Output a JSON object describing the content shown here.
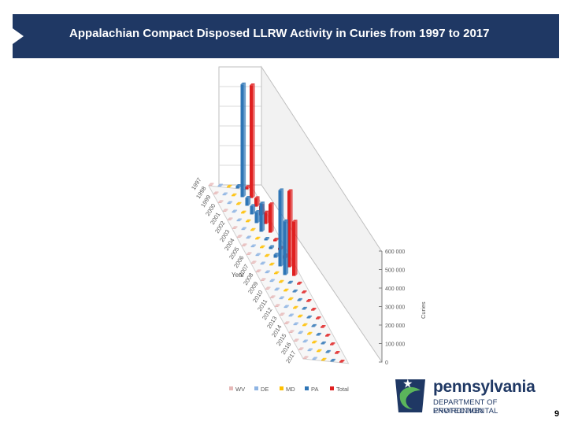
{
  "slide": {
    "title": "Appalachian Compact Disposed LLRW Activity in Curies from 1997 to 2017",
    "page_number": "9"
  },
  "logo": {
    "name": "pennsylvania",
    "line1": "DEPARTMENT OF ENVIRONMENTAL",
    "line2": "PROTECTION"
  },
  "colors": {
    "title_bar": "#1f3864",
    "WV": "#e6b9b8",
    "DE": "#8eb4e3",
    "MD": "#ffc000",
    "PA": "#2e75b6",
    "Total": "#e02020"
  },
  "chart_data": {
    "type": "bar3d",
    "title": "Appalachian Compact Disposed LLRW Activity in Curies from 1997 to 2017",
    "xlabel": "Year",
    "zlabel": "Curies",
    "categories": [
      "1997",
      "1998",
      "1999",
      "2000",
      "2001",
      "2002",
      "2003",
      "2004",
      "2005",
      "2006",
      "2007",
      "2008",
      "2009",
      "2010",
      "2011",
      "2012",
      "2013",
      "2014",
      "2015",
      "2016",
      "2017"
    ],
    "category_tick_labels": [
      "1997",
      "1998",
      "1999",
      "2000",
      "2001",
      "2002",
      "2003",
      "2004",
      "2005",
      "2006",
      "2007",
      "2008",
      "2009",
      "2010",
      "2011",
      "2012",
      "2013",
      "2014",
      "2015",
      "2016",
      "2017"
    ],
    "ylim": [
      0,
      600000
    ],
    "ytick_labels": [
      "0",
      "100 000",
      "200 000",
      "300 000",
      "400 000",
      "500 000",
      "600 000"
    ],
    "series": [
      {
        "name": "WV",
        "values": [
          0,
          0,
          0,
          0,
          0,
          0,
          0,
          0,
          0,
          0,
          0,
          0,
          0,
          0,
          0,
          0,
          0,
          0,
          0,
          0,
          0
        ]
      },
      {
        "name": "DE",
        "values": [
          0,
          0,
          0,
          0,
          0,
          0,
          0,
          0,
          0,
          0,
          0,
          0,
          0,
          0,
          0,
          0,
          0,
          0,
          0,
          0,
          0
        ]
      },
      {
        "name": "MD",
        "values": [
          0,
          0,
          3000,
          5000,
          2000,
          1000,
          0,
          0,
          500,
          0,
          2500,
          0,
          0,
          0,
          0,
          0,
          0,
          0,
          0,
          0,
          0
        ]
      },
      {
        "name": "PA",
        "values": [
          12000,
          570000,
          40000,
          42000,
          55000,
          140000,
          8000,
          10000,
          15000,
          370000,
          260000,
          5000,
          2000,
          1000,
          0,
          0,
          0,
          0,
          0,
          0,
          0
        ]
      },
      {
        "name": "Total",
        "values": [
          12000,
          570000,
          43000,
          47000,
          57000,
          141000,
          8000,
          10000,
          15500,
          370000,
          262500,
          5000,
          2000,
          1000,
          0,
          0,
          0,
          0,
          0,
          0,
          0
        ]
      }
    ],
    "legend": [
      "WV",
      "DE",
      "MD",
      "PA",
      "Total"
    ],
    "legend_position": "bottom"
  }
}
